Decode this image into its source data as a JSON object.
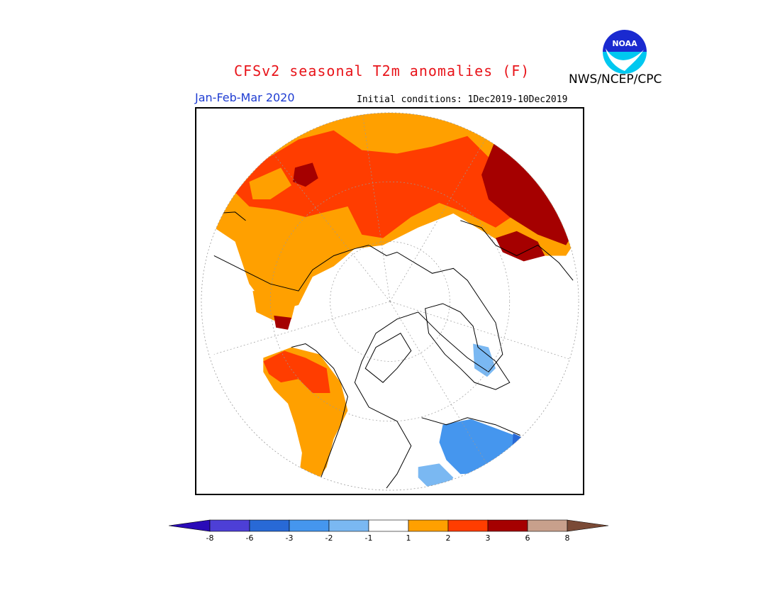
{
  "header": {
    "title": "CFSv2 seasonal T2m anomalies (F)",
    "agency": "NWS/NCEP/CPC",
    "logo_text": "NOAA",
    "period": "Jan-Feb-Mar 2020",
    "initial_conditions": "Initial conditions: 1Dec2019-10Dec2019"
  },
  "legend": {
    "labels": [
      "-8",
      "-6",
      "-3",
      "-2",
      "-1",
      "1",
      "2",
      "3",
      "6",
      "8"
    ],
    "colors": [
      "#2a0bb8",
      "#4d3fd6",
      "#2869d6",
      "#4596ee",
      "#7ab8f2",
      "#ffffff",
      "#ffa000",
      "#ff3d00",
      "#a50000",
      "#c8a08c",
      "#7a4a36"
    ]
  },
  "colors": {
    "title": "#e8141a",
    "period": "#1e3cd2",
    "light_orange": "#ffa000",
    "orange_red": "#ff3d00",
    "dark_red": "#a50000",
    "light_blue": "#4596ee",
    "pale_blue": "#7ab8f2",
    "dark_blue": "#2869d6"
  }
}
